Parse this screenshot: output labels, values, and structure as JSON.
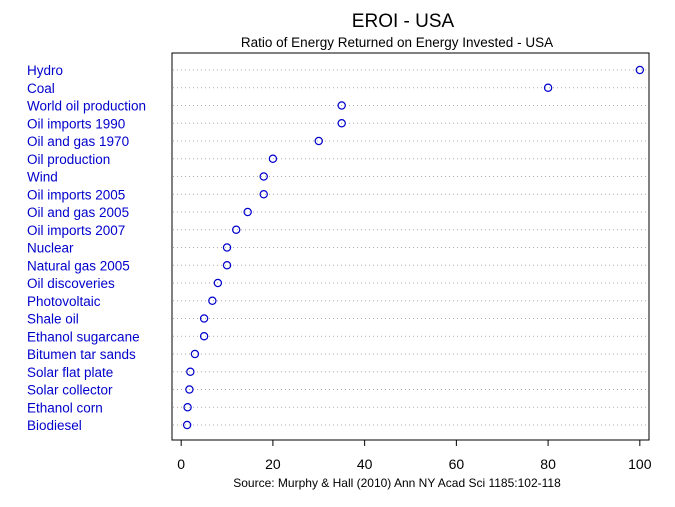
{
  "chart_data": {
    "type": "scatter",
    "title": "EROI - USA",
    "subtitle": "Ratio of Energy Returned on Energy Invested - USA",
    "source": "Source: Murphy & Hall (2010) Ann NY Acad Sci 1185:102-118",
    "categories": [
      "Hydro",
      "Coal",
      "World oil production",
      "Oil imports 1990",
      "Oil and gas 1970",
      "Oil production",
      "Wind",
      "Oil imports 2005",
      "Oil and gas 2005",
      "Oil imports 2007",
      "Nuclear",
      "Natural gas 2005",
      "Oil discoveries",
      "Photovoltaic",
      "Shale oil",
      "Ethanol sugarcane",
      "Bitumen tar sands",
      "Solar flat plate",
      "Solar collector",
      "Ethanol corn",
      "Biodiesel"
    ],
    "values": [
      100,
      80,
      35,
      35,
      30,
      20,
      18,
      18,
      14.5,
      12,
      10,
      10,
      8,
      6.8,
      5,
      5,
      3,
      2,
      1.8,
      1.4,
      1.3
    ],
    "xlim": [
      -2,
      102
    ],
    "xticks": [
      0,
      20,
      40,
      60,
      80,
      100
    ],
    "grid": true,
    "colors": {
      "points": "#0000cc",
      "labels": "#0000cc",
      "grid": "#aaaaaa",
      "axis": "#000000"
    }
  }
}
